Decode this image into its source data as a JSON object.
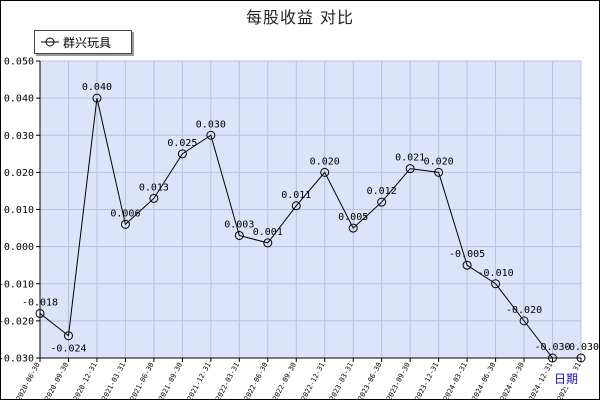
{
  "chart_data": {
    "type": "line",
    "title": "每股收益  对比",
    "xlabel": "",
    "ylabel": "",
    "ylim": [
      -0.03,
      0.05
    ],
    "yticks": [
      "0.050",
      "0.040",
      "0.030",
      "0.020",
      "0.010",
      "0.000",
      "-0.010",
      "-0.020",
      "-0.030"
    ],
    "x_unit": "日期",
    "grid": true,
    "legend_position": "top-left",
    "colors": {
      "plot_bg": "#dde3f9",
      "grid": "#b8c0e0",
      "line": "#000000"
    },
    "categories": [
      "2020-06-30",
      "2020-09-30",
      "2020-12-31",
      "2021-03-31",
      "2021-06-30",
      "2021-09-30",
      "2021-12-31",
      "2022-03-31",
      "2022-06-30",
      "2022-09-30",
      "2022-12-31",
      "2023-03-31",
      "2023-06-30",
      "2023-09-30",
      "2023-12-31",
      "2024-03-31",
      "2024-06-30",
      "2024-09-30",
      "2024-12-31",
      "2025-03-31"
    ],
    "series": [
      {
        "name": "群兴玩具",
        "values": [
          -0.018,
          -0.024,
          0.04,
          0.006,
          0.013,
          0.025,
          0.03,
          0.003,
          0.001,
          0.011,
          0.02,
          0.005,
          0.012,
          0.021,
          0.02,
          -0.005,
          -0.01,
          -0.02,
          -0.03,
          -0.03
        ],
        "labels": [
          "-0.018",
          "-0.024",
          "0.040",
          "0.006",
          "0.013",
          "0.025",
          "0.030",
          "0.003",
          "0.001",
          "0.011",
          "0.020",
          "0.005",
          "0.012",
          "0.021",
          "0.020",
          "-0.005",
          "-0.010",
          "-0.020",
          "-0.030",
          "-0.030"
        ]
      }
    ]
  }
}
